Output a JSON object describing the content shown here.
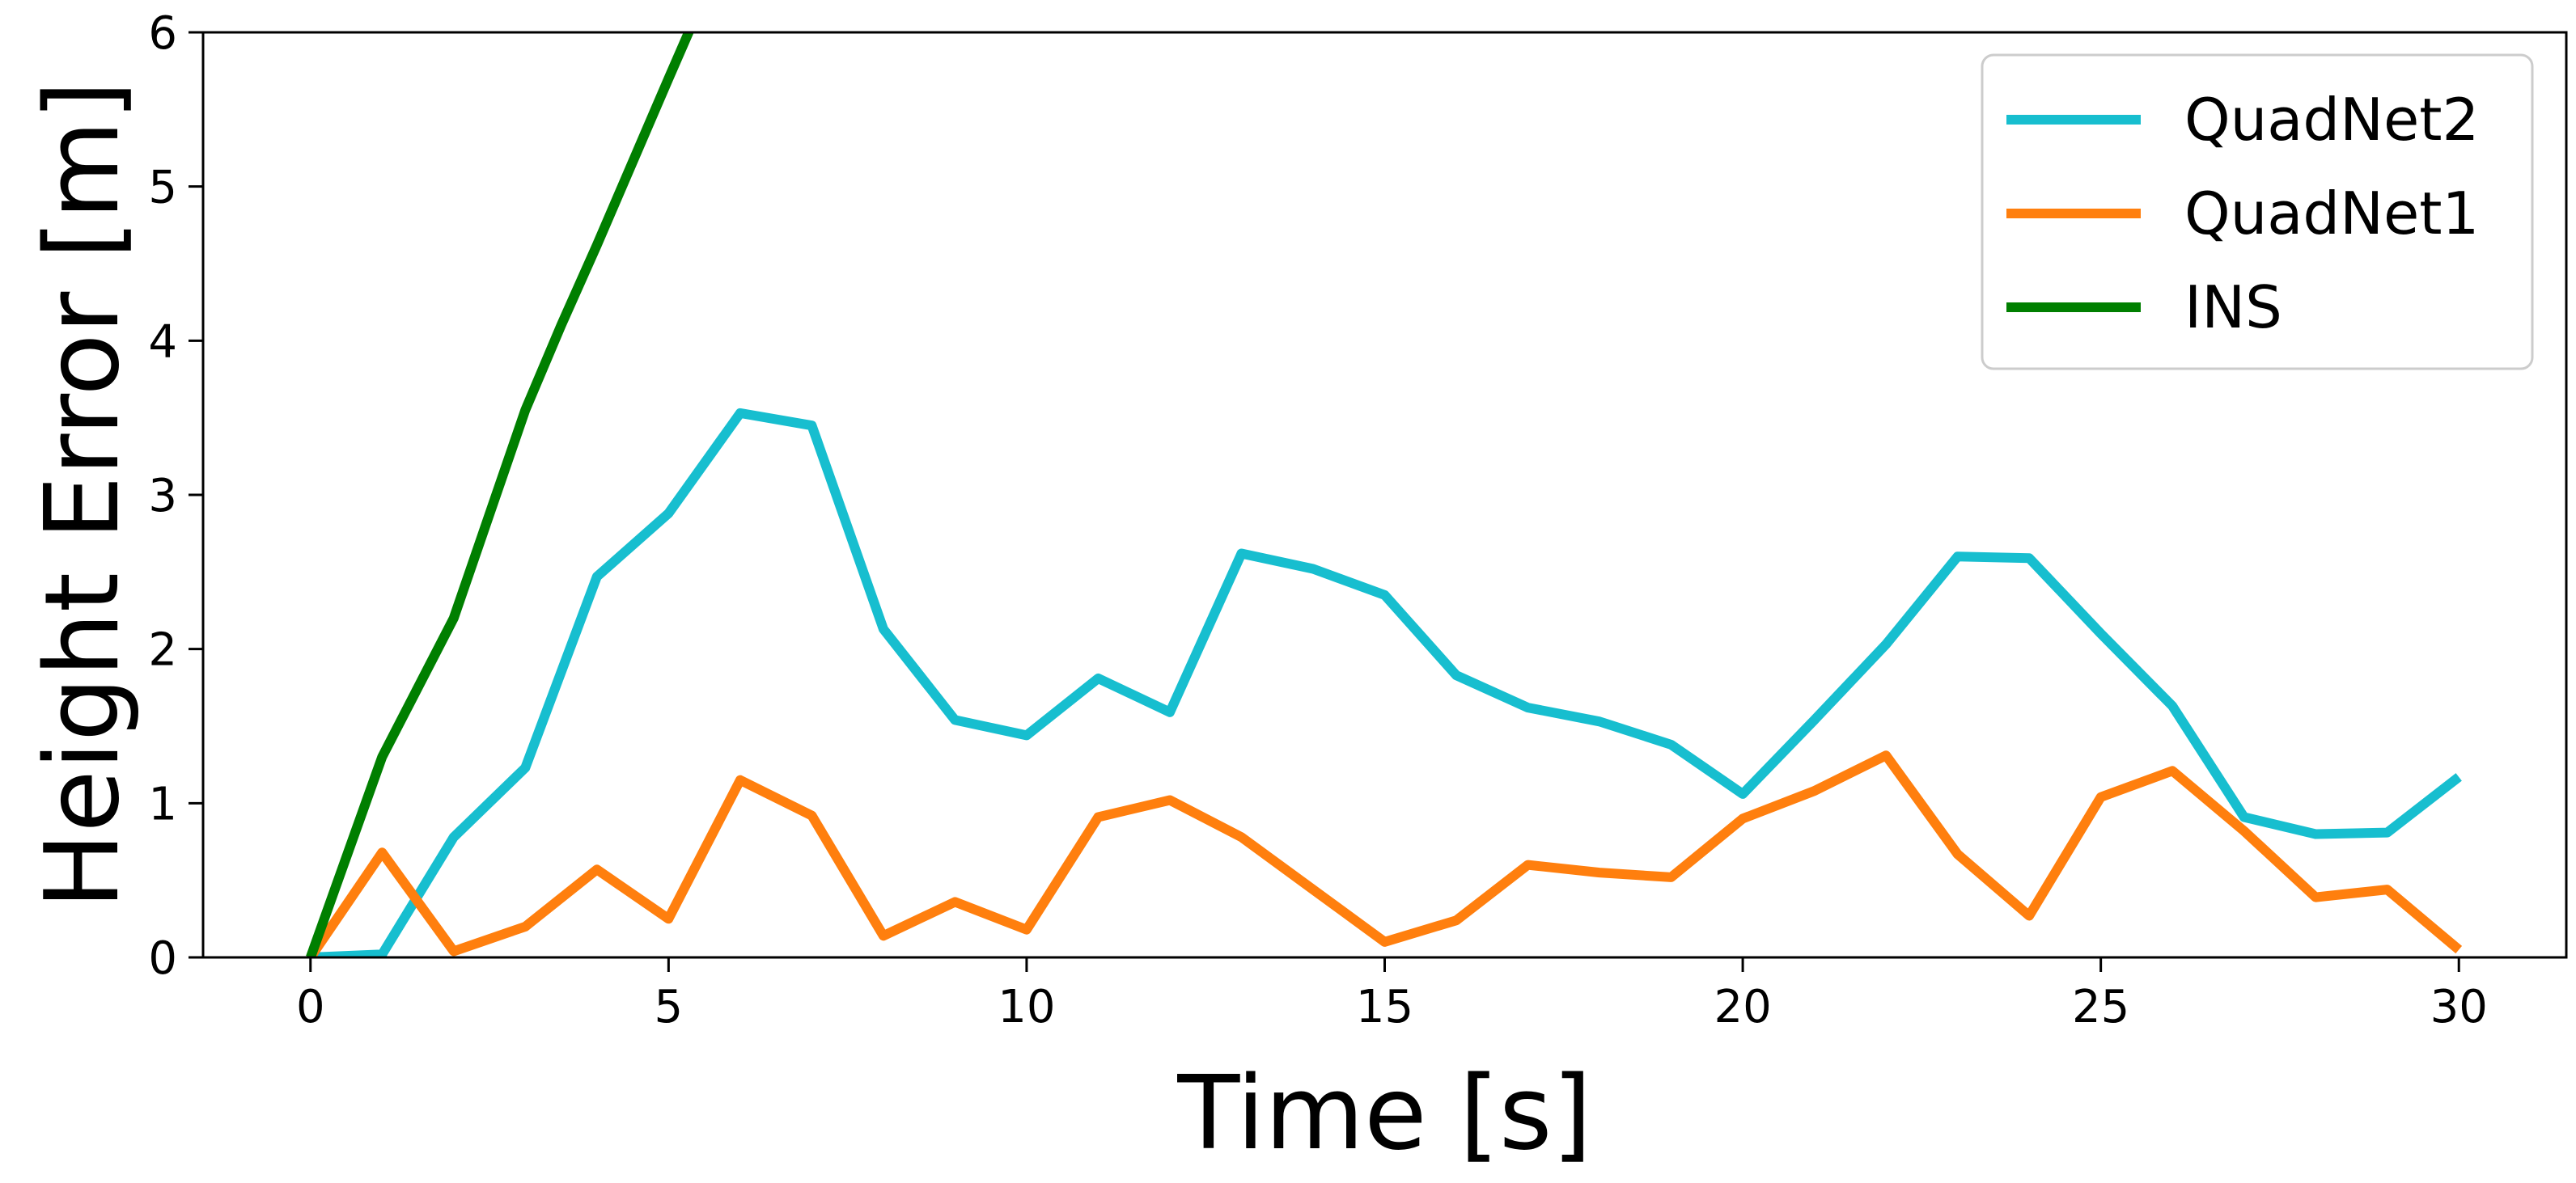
{
  "chart_data": {
    "type": "line",
    "title": "",
    "xlabel": "Time [s]",
    "ylabel": "Height Error [m]",
    "xlim": [
      -1.5,
      31.5
    ],
    "ylim": [
      0,
      6
    ],
    "xticks": [
      "0",
      "5",
      "10",
      "15",
      "20",
      "25",
      "30"
    ],
    "yticks": [
      "0",
      "1",
      "2",
      "3",
      "4",
      "5",
      "6"
    ],
    "grid": false,
    "legend_position": "top-right",
    "series": [
      {
        "name": "QuadNet2",
        "color": "#17becf",
        "x": [
          0,
          1,
          2,
          3,
          4,
          5,
          6,
          7,
          8,
          9,
          10,
          11,
          12,
          13,
          14,
          15,
          16,
          17,
          18,
          19,
          20,
          21,
          22,
          23,
          24,
          25,
          26,
          27,
          28,
          29,
          30
        ],
        "y": [
          0.0,
          0.02,
          0.78,
          1.23,
          2.47,
          2.88,
          3.53,
          3.45,
          2.13,
          1.54,
          1.44,
          1.81,
          1.59,
          2.62,
          2.52,
          2.35,
          1.83,
          1.62,
          1.53,
          1.38,
          1.06,
          1.54,
          2.03,
          2.6,
          2.59,
          2.1,
          1.63,
          0.91,
          0.8,
          0.81,
          1.17
        ]
      },
      {
        "name": "QuadNet1",
        "color": "#ff7f0e",
        "x": [
          0,
          1,
          2,
          3,
          4,
          5,
          6,
          7,
          8,
          9,
          10,
          11,
          12,
          13,
          14,
          15,
          16,
          17,
          18,
          19,
          20,
          21,
          22,
          23,
          24,
          25,
          26,
          27,
          28,
          29,
          30
        ],
        "y": [
          0.0,
          0.68,
          0.04,
          0.2,
          0.57,
          0.25,
          1.15,
          0.92,
          0.14,
          0.36,
          0.18,
          0.91,
          1.02,
          0.78,
          0.44,
          0.1,
          0.24,
          0.6,
          0.55,
          0.52,
          0.9,
          1.08,
          1.31,
          0.67,
          0.27,
          1.04,
          1.21,
          0.82,
          0.39,
          0.44,
          0.05
        ]
      },
      {
        "name": "INS",
        "color": "#007f00",
        "x": [
          0,
          1,
          2,
          3,
          3.5,
          4,
          5,
          5.3
        ],
        "y": [
          0.0,
          1.3,
          2.2,
          3.55,
          4.1,
          4.62,
          5.7,
          6.02
        ]
      }
    ]
  }
}
